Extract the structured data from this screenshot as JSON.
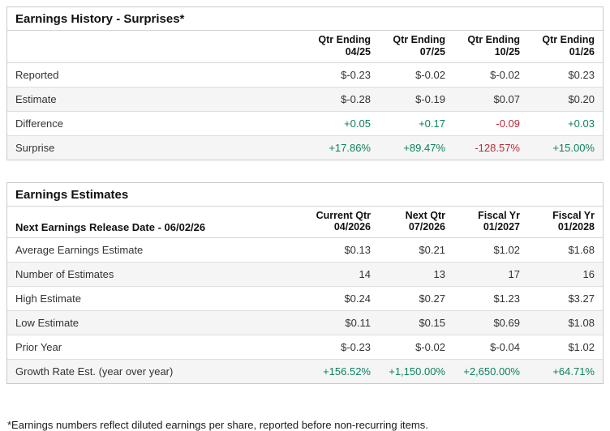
{
  "colors": {
    "positive": "#0e8160",
    "negative": "#b52b3a"
  },
  "surprises": {
    "title": "Earnings History - Surprises*",
    "corner_label": "",
    "columns": [
      [
        "Qtr Ending",
        "04/25"
      ],
      [
        "Qtr Ending",
        "07/25"
      ],
      [
        "Qtr Ending",
        "10/25"
      ],
      [
        "Qtr Ending",
        "01/26"
      ]
    ],
    "rows": [
      {
        "label": "Reported",
        "values": [
          "$-0.23",
          "$-0.02",
          "$-0.02",
          "$0.23"
        ],
        "tones": [
          "",
          "",
          "",
          ""
        ]
      },
      {
        "label": "Estimate",
        "values": [
          "$-0.28",
          "$-0.19",
          "$0.07",
          "$0.20"
        ],
        "tones": [
          "",
          "",
          "",
          ""
        ]
      },
      {
        "label": "Difference",
        "values": [
          "+0.05",
          "+0.17",
          "-0.09",
          "+0.03"
        ],
        "tones": [
          "pos",
          "pos",
          "neg",
          "pos"
        ]
      },
      {
        "label": "Surprise",
        "values": [
          "+17.86%",
          "+89.47%",
          "-128.57%",
          "+15.00%"
        ],
        "tones": [
          "pos",
          "pos",
          "neg",
          "pos"
        ]
      }
    ]
  },
  "estimates": {
    "title": "Earnings Estimates",
    "corner_label": "Next Earnings Release Date - 06/02/26",
    "columns": [
      [
        "Current Qtr",
        "04/2026"
      ],
      [
        "Next Qtr",
        "07/2026"
      ],
      [
        "Fiscal Yr",
        "01/2027"
      ],
      [
        "Fiscal Yr",
        "01/2028"
      ]
    ],
    "rows": [
      {
        "label": "Average Earnings Estimate",
        "values": [
          "$0.13",
          "$0.21",
          "$1.02",
          "$1.68"
        ],
        "tones": [
          "",
          "",
          "",
          ""
        ]
      },
      {
        "label": "Number of Estimates",
        "values": [
          "14",
          "13",
          "17",
          "16"
        ],
        "tones": [
          "",
          "",
          "",
          ""
        ]
      },
      {
        "label": "High Estimate",
        "values": [
          "$0.24",
          "$0.27",
          "$1.23",
          "$3.27"
        ],
        "tones": [
          "",
          "",
          "",
          ""
        ]
      },
      {
        "label": "Low Estimate",
        "values": [
          "$0.11",
          "$0.15",
          "$0.69",
          "$1.08"
        ],
        "tones": [
          "",
          "",
          "",
          ""
        ]
      },
      {
        "label": "Prior Year",
        "values": [
          "$-0.23",
          "$-0.02",
          "$-0.04",
          "$1.02"
        ],
        "tones": [
          "",
          "",
          "",
          ""
        ]
      },
      {
        "label": "Growth Rate Est. (year over year)",
        "values": [
          "+156.52%",
          "+1,150.00%",
          "+2,650.00%",
          "+64.71%"
        ],
        "tones": [
          "pos",
          "pos",
          "pos",
          "pos"
        ]
      }
    ]
  },
  "footnote": "*Earnings numbers reflect diluted earnings per share, reported before non-recurring items."
}
